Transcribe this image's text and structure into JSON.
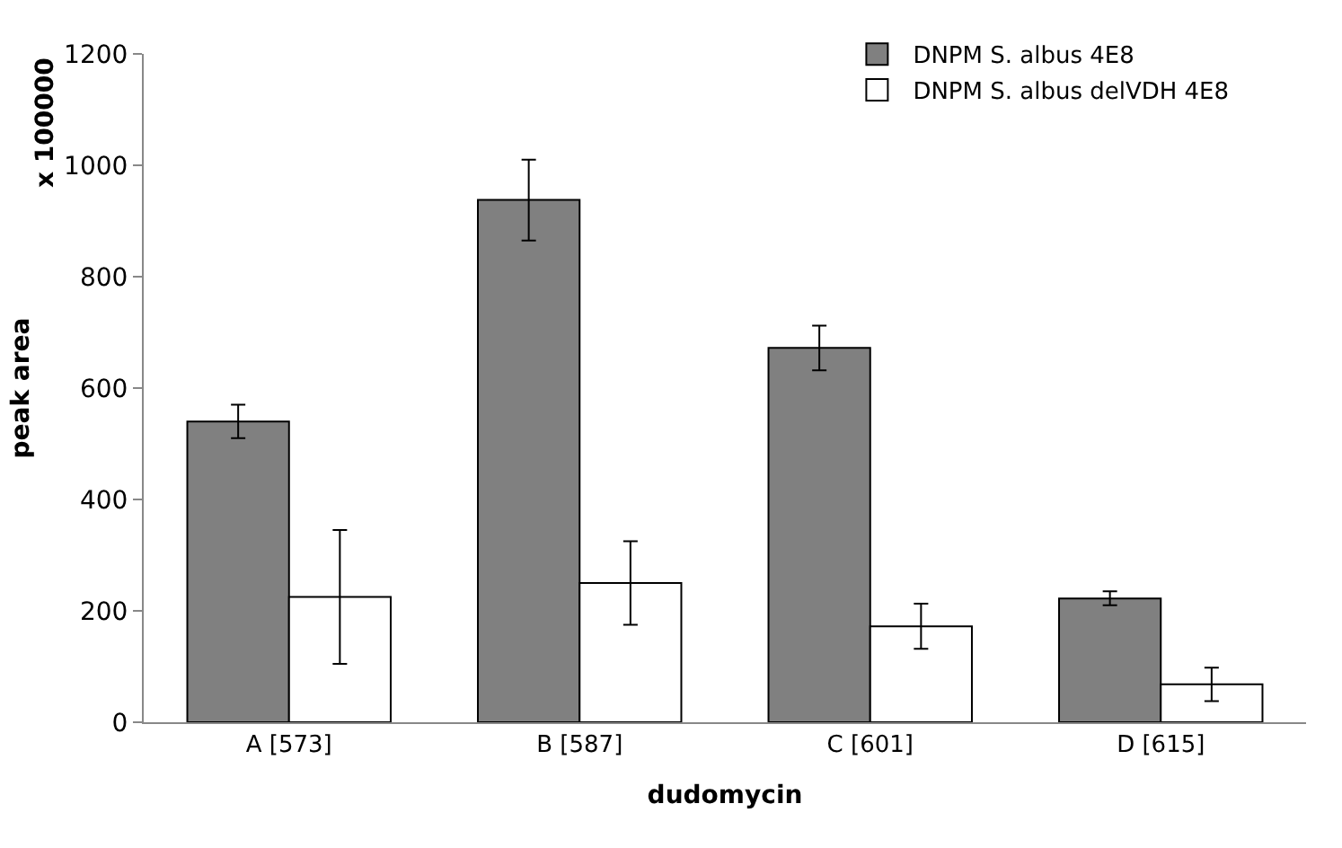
{
  "chart_data": {
    "type": "bar",
    "xlabel": "dudomycin",
    "ylabel": "peak area",
    "annotations": [
      "x 100000"
    ],
    "categories": [
      "A [573]",
      "B [587]",
      "C [601]",
      "D [615]"
    ],
    "series": [
      {
        "name": "DNPM S. albus 4E8",
        "color": "#808080",
        "values": [
          540,
          938,
          672,
          222
        ],
        "errors": [
          [
            510,
            570
          ],
          [
            865,
            1010
          ],
          [
            632,
            712
          ],
          [
            210,
            235
          ]
        ]
      },
      {
        "name": "DNPM S. albus delVDH 4E8",
        "color": "#ffffff",
        "values": [
          225,
          250,
          172,
          68
        ],
        "errors": [
          [
            105,
            345
          ],
          [
            175,
            325
          ],
          [
            132,
            213
          ],
          [
            38,
            98
          ]
        ]
      }
    ],
    "ylim": [
      0,
      1200
    ],
    "yticks": [
      0,
      200,
      400,
      600,
      800,
      1000,
      1200
    ],
    "legend": "top right"
  }
}
